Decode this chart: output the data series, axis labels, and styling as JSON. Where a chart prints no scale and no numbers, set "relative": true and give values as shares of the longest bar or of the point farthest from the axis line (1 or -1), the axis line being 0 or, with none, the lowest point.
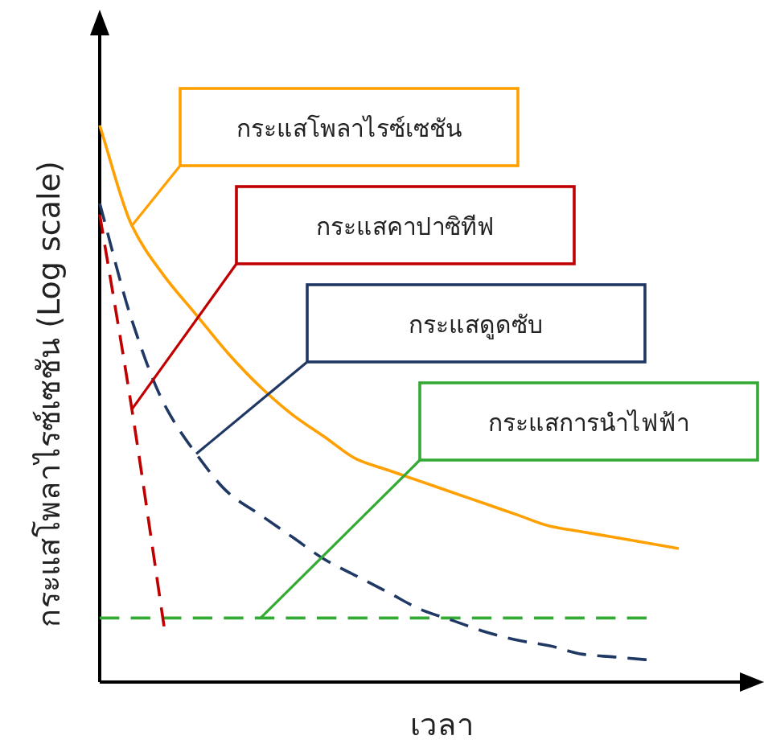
{
  "chart_data": {
    "type": "line",
    "relative": true,
    "xlabel": "เวลา",
    "ylabel": "กระแสโพลาไรซ์เซชัน (Log scale)",
    "legend": false,
    "categories": [
      null,
      null,
      null,
      null,
      null,
      null,
      null,
      null,
      null,
      null,
      null,
      null,
      null,
      null,
      null,
      null,
      null,
      null,
      null
    ],
    "series": [
      {
        "name": "กระแสโพลาไรซ์เซชัน",
        "color": "#ffa000",
        "line_style": "solid",
        "values": [
          1.0,
          0.82,
          0.73,
          0.66,
          0.59,
          0.53,
          0.48,
          0.44,
          0.4,
          0.38,
          0.36,
          0.34,
          0.32,
          0.3,
          0.28,
          0.27,
          0.26,
          0.25,
          0.24
        ]
      },
      {
        "name": "กระแสคาปาซิทีฟ",
        "color": "#c00000",
        "line_style": "dashed",
        "values": [
          0.84,
          0.49,
          0.1,
          null,
          null,
          null,
          null,
          null,
          null,
          null,
          null,
          null,
          null,
          null,
          null,
          null,
          null,
          null,
          null
        ]
      },
      {
        "name": "กระแสดูดซับ",
        "color": "#1f3864",
        "line_style": "dashed",
        "values": [
          0.86,
          0.65,
          0.5,
          0.41,
          0.34,
          0.3,
          0.26,
          0.22,
          0.19,
          0.16,
          0.13,
          0.11,
          0.09,
          0.075,
          0.065,
          0.05,
          0.045,
          0.04,
          null
        ]
      },
      {
        "name": "กระแสการนำไฟฟ้า",
        "color": "#33aa33",
        "line_style": "dashed",
        "values": [
          0.115,
          0.115,
          0.115,
          0.115,
          0.115,
          0.115,
          0.115,
          0.115,
          0.115,
          0.115,
          0.115,
          0.115,
          0.115,
          0.115,
          0.115,
          0.115,
          0.115,
          0.115,
          null
        ]
      }
    ]
  }
}
